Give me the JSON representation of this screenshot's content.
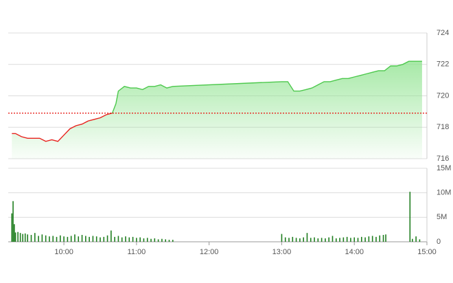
{
  "chart_data": [
    {
      "type": "line",
      "x": [
        557,
        560,
        565,
        570,
        575,
        580,
        585,
        590,
        595,
        600,
        605,
        610,
        615,
        620,
        625,
        630,
        635,
        640,
        643,
        645,
        650,
        655,
        660,
        665,
        670,
        675,
        680,
        685,
        690,
        780,
        785,
        790,
        795,
        800,
        805,
        810,
        815,
        820,
        825,
        830,
        835,
        840,
        845,
        850,
        855,
        860,
        865,
        870,
        875,
        880,
        885,
        890,
        896
      ],
      "values": [
        717.6,
        717.6,
        717.4,
        717.3,
        717.3,
        717.3,
        717.1,
        717.2,
        717.1,
        717.5,
        717.9,
        718.1,
        718.2,
        718.4,
        718.5,
        718.6,
        718.8,
        718.9,
        719.5,
        720.3,
        720.6,
        720.5,
        720.5,
        720.4,
        720.6,
        720.6,
        720.7,
        720.5,
        720.6,
        720.9,
        720.9,
        720.3,
        720.3,
        720.4,
        720.5,
        720.7,
        720.9,
        720.9,
        721.0,
        721.1,
        721.1,
        721.2,
        721.3,
        721.4,
        721.5,
        721.6,
        721.6,
        721.9,
        721.9,
        722.0,
        722.2,
        722.2,
        722.2
      ],
      "reference": 718.9,
      "xlim": [
        554,
        900
      ],
      "ylim": [
        716,
        724
      ],
      "yticks": [
        716,
        718,
        720,
        722,
        724
      ],
      "up_color": "#4cc84c",
      "down_color": "#e8201c",
      "reference_color": "#e8201c",
      "fill_color": "#8fe38f",
      "grid": true
    },
    {
      "type": "bar",
      "x": [
        557,
        558,
        559,
        560,
        562,
        564,
        566,
        568,
        570,
        573,
        576,
        579,
        582,
        585,
        588,
        591,
        594,
        597,
        600,
        603,
        606,
        609,
        612,
        615,
        618,
        621,
        624,
        627,
        630,
        633,
        636,
        639,
        642,
        645,
        648,
        651,
        654,
        657,
        660,
        663,
        666,
        669,
        672,
        675,
        678,
        681,
        684,
        687,
        690,
        780,
        783,
        786,
        789,
        792,
        795,
        798,
        801,
        804,
        807,
        810,
        813,
        816,
        819,
        822,
        825,
        828,
        831,
        834,
        837,
        840,
        843,
        846,
        849,
        852,
        855,
        858,
        861,
        864,
        866,
        886,
        888,
        891,
        894
      ],
      "values": [
        5800000,
        8300000,
        3600000,
        1900000,
        2000000,
        1800000,
        1600000,
        1700000,
        1500000,
        1400000,
        1800000,
        1200000,
        1500000,
        1300000,
        1100000,
        1200000,
        1000000,
        1300000,
        1100000,
        1000000,
        1200000,
        1500000,
        1100000,
        1400000,
        1200000,
        1000000,
        1200000,
        1100000,
        900000,
        1000000,
        1300000,
        2300000,
        1000000,
        1200000,
        900000,
        1100000,
        900000,
        1000000,
        800000,
        900000,
        700000,
        800000,
        600000,
        700000,
        500000,
        600000,
        500000,
        400000,
        400000,
        1600000,
        900000,
        800000,
        1000000,
        800000,
        700000,
        900000,
        1800000,
        800000,
        900000,
        700000,
        800000,
        700000,
        900000,
        1200000,
        700000,
        800000,
        900000,
        1000000,
        800000,
        900000,
        800000,
        1000000,
        900000,
        1100000,
        1200000,
        1000000,
        1300000,
        1400000,
        1500000,
        10200000,
        600000,
        1100000,
        500000
      ],
      "color": "#1e7d1e",
      "xlim": [
        554,
        900
      ],
      "xticks": [
        {
          "value": 600,
          "label": "10:00"
        },
        {
          "value": 660,
          "label": "11:00"
        },
        {
          "value": 720,
          "label": "12:00"
        },
        {
          "value": 780,
          "label": "13:00"
        },
        {
          "value": 840,
          "label": "14:00"
        },
        {
          "value": 900,
          "label": "15:00"
        }
      ],
      "ylim": [
        0,
        15000000
      ],
      "yticks": [
        0,
        {
          "value": 5000000,
          "label": "5M"
        },
        {
          "value": 10000000,
          "label": "10M"
        },
        {
          "value": 15000000,
          "label": "15M"
        }
      ],
      "grid": true
    }
  ]
}
